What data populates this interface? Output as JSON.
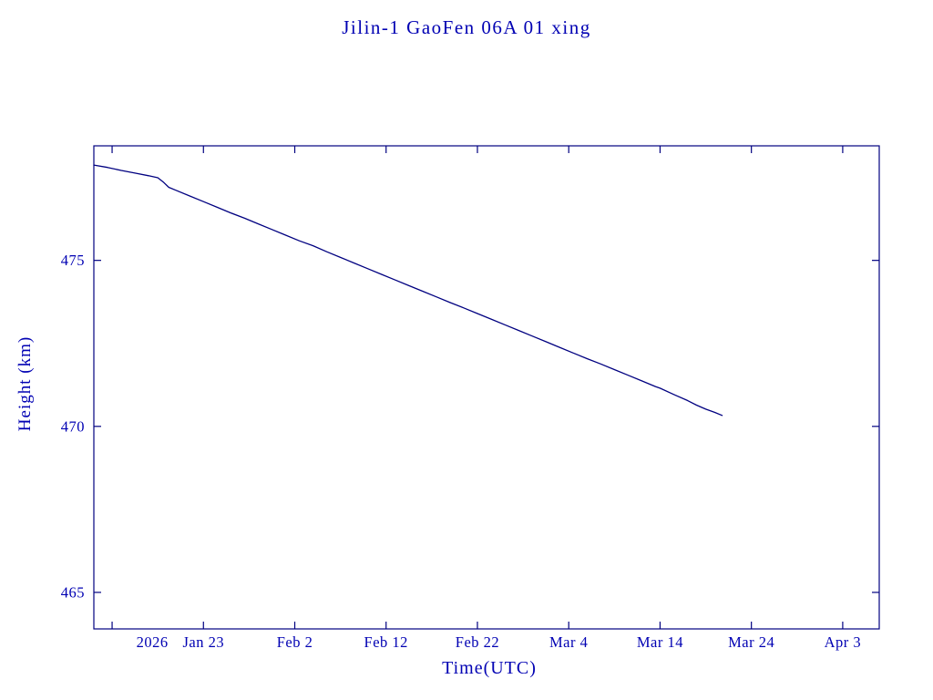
{
  "colors": {
    "text": "#0000b3",
    "axis": "#000080",
    "line": "#000080"
  },
  "chart_data": {
    "type": "line",
    "title": "Jilin-1 GaoFen 06A 01 xing",
    "xlabel": "Time(UTC)",
    "ylabel": "Height (km)",
    "legend": null,
    "grid": false,
    "x_unit": "days since 2026-01-11",
    "xlim": [
      0,
      86
    ],
    "ylim": [
      463.9,
      478.45
    ],
    "y_ticks": [
      465,
      470,
      475
    ],
    "x_ticks": [
      {
        "day": 2,
        "label": ""
      },
      {
        "day": 12,
        "label": "Jan 23"
      },
      {
        "day": 22,
        "label": "Feb 2"
      },
      {
        "day": 32,
        "label": "Feb 12"
      },
      {
        "day": 42,
        "label": "Feb 22"
      },
      {
        "day": 52,
        "label": "Mar 4"
      },
      {
        "day": 62,
        "label": "Mar 14"
      },
      {
        "day": 72,
        "label": "Mar 24"
      },
      {
        "day": 82,
        "label": "Apr 3"
      }
    ],
    "year_label": {
      "day": 6.4,
      "label": "2026"
    },
    "series": [
      {
        "name": "height_km",
        "points": [
          [
            0,
            477.87
          ],
          [
            1.5,
            477.8
          ],
          [
            3,
            477.71
          ],
          [
            4.5,
            477.63
          ],
          [
            6,
            477.55
          ],
          [
            7,
            477.49
          ],
          [
            7.6,
            477.36
          ],
          [
            8.2,
            477.2
          ],
          [
            9,
            477.11
          ],
          [
            10.5,
            476.94
          ],
          [
            12,
            476.77
          ],
          [
            13.5,
            476.6
          ],
          [
            15,
            476.43
          ],
          [
            16.5,
            476.27
          ],
          [
            18,
            476.1
          ],
          [
            19.5,
            475.93
          ],
          [
            21,
            475.76
          ],
          [
            22.5,
            475.59
          ],
          [
            24,
            475.44
          ],
          [
            25.5,
            475.26
          ],
          [
            27,
            475.09
          ],
          [
            28.5,
            474.92
          ],
          [
            30,
            474.75
          ],
          [
            31.5,
            474.58
          ],
          [
            33,
            474.41
          ],
          [
            34.5,
            474.24
          ],
          [
            36,
            474.07
          ],
          [
            37.5,
            473.9
          ],
          [
            39,
            473.73
          ],
          [
            40.5,
            473.57
          ],
          [
            42,
            473.4
          ],
          [
            43.5,
            473.23
          ],
          [
            45,
            473.06
          ],
          [
            46.5,
            472.89
          ],
          [
            48,
            472.72
          ],
          [
            49.5,
            472.55
          ],
          [
            51,
            472.38
          ],
          [
            52.5,
            472.21
          ],
          [
            54,
            472.04
          ],
          [
            55.5,
            471.88
          ],
          [
            57,
            471.71
          ],
          [
            58.5,
            471.54
          ],
          [
            60,
            471.37
          ],
          [
            61.5,
            471.2
          ],
          [
            62,
            471.15
          ],
          [
            63.5,
            470.96
          ],
          [
            65,
            470.78
          ],
          [
            66,
            470.64
          ],
          [
            67,
            470.52
          ],
          [
            68,
            470.42
          ],
          [
            68.8,
            470.33
          ]
        ]
      }
    ]
  }
}
